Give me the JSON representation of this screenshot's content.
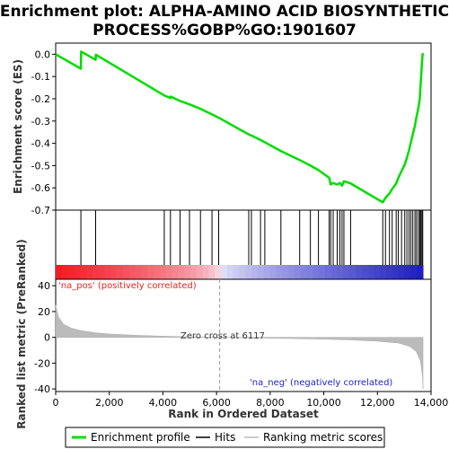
{
  "chart_data": {
    "type": "line",
    "title_lines": [
      "Enrichment plot: ALPHA-AMINO ACID BIOSYNTHETIC",
      "PROCESS%GOBP%GO:1901607"
    ],
    "es_panel": {
      "ylabel": "Enrichment score (ES)",
      "ylim": [
        -0.7,
        0.05
      ],
      "yticks": [
        0.0,
        -0.1,
        -0.2,
        -0.3,
        -0.4,
        -0.5,
        -0.6,
        -0.7
      ],
      "ytick_labels": [
        "0.0",
        "-0.1",
        "-0.2",
        "-0.3",
        "-0.4",
        "-0.5",
        "-0.6",
        "-0.7"
      ],
      "line_color": "#00dd00",
      "profile": [
        [
          0,
          0.0
        ],
        [
          940,
          -0.065
        ],
        [
          950,
          0.012
        ],
        [
          1490,
          -0.025
        ],
        [
          1500,
          -0.002
        ],
        [
          4050,
          -0.185
        ],
        [
          4280,
          -0.197
        ],
        [
          4290,
          -0.19
        ],
        [
          4640,
          -0.21
        ],
        [
          4990,
          -0.225
        ],
        [
          5400,
          -0.245
        ],
        [
          5830,
          -0.27
        ],
        [
          6080,
          -0.285
        ],
        [
          7200,
          -0.36
        ],
        [
          7300,
          -0.365
        ],
        [
          7640,
          -0.385
        ],
        [
          7800,
          -0.395
        ],
        [
          8400,
          -0.435
        ],
        [
          9100,
          -0.475
        ],
        [
          9500,
          -0.5
        ],
        [
          9800,
          -0.52
        ],
        [
          10200,
          -0.555
        ],
        [
          10260,
          -0.585
        ],
        [
          10350,
          -0.578
        ],
        [
          10500,
          -0.585
        ],
        [
          10600,
          -0.578
        ],
        [
          10680,
          -0.59
        ],
        [
          10750,
          -0.57
        ],
        [
          11000,
          -0.58
        ],
        [
          12200,
          -0.665
        ],
        [
          12300,
          -0.645
        ],
        [
          12450,
          -0.625
        ],
        [
          12550,
          -0.605
        ],
        [
          12700,
          -0.58
        ],
        [
          12780,
          -0.555
        ],
        [
          12900,
          -0.525
        ],
        [
          13020,
          -0.495
        ],
        [
          13100,
          -0.465
        ],
        [
          13180,
          -0.43
        ],
        [
          13250,
          -0.395
        ],
        [
          13320,
          -0.36
        ],
        [
          13400,
          -0.32
        ],
        [
          13460,
          -0.28
        ],
        [
          13530,
          -0.24
        ],
        [
          13580,
          -0.2
        ],
        [
          13620,
          -0.12
        ],
        [
          13660,
          -0.04
        ],
        [
          13690,
          0.005
        ]
      ]
    },
    "hits": [
      940,
      1490,
      4050,
      4280,
      4640,
      4990,
      5400,
      5830,
      6080,
      7200,
      7300,
      7640,
      7800,
      8400,
      9100,
      9500,
      9800,
      10200,
      10260,
      10350,
      10500,
      10600,
      10680,
      10750,
      11000,
      12200,
      12300,
      12450,
      12550,
      12700,
      12780,
      12900,
      13020,
      13100,
      13180,
      13250,
      13320,
      13400,
      13460,
      13530,
      13580,
      13620,
      13660,
      13690
    ],
    "ranking_panel": {
      "ylabel": "Ranked list metric (PreRanked)",
      "ylim": [
        -42,
        45
      ],
      "yticks": [
        40,
        20,
        0,
        -20,
        -40
      ],
      "ytick_labels": [
        "40",
        "20",
        "0",
        "-20",
        "-40"
      ],
      "metric_curve": [
        [
          0,
          25
        ],
        [
          100,
          16
        ],
        [
          300,
          10
        ],
        [
          600,
          7
        ],
        [
          1000,
          5
        ],
        [
          1500,
          3.5
        ],
        [
          2000,
          2.6
        ],
        [
          3000,
          1.6
        ],
        [
          4000,
          0.9
        ],
        [
          5000,
          0.4
        ],
        [
          6117,
          0
        ],
        [
          7000,
          -0.3
        ],
        [
          8000,
          -0.7
        ],
        [
          9000,
          -1.0
        ],
        [
          10000,
          -1.4
        ],
        [
          11000,
          -2.0
        ],
        [
          12000,
          -3.0
        ],
        [
          12800,
          -4.5
        ],
        [
          13200,
          -7
        ],
        [
          13450,
          -11
        ],
        [
          13600,
          -18
        ],
        [
          13680,
          -30
        ],
        [
          13700,
          -40
        ]
      ],
      "zero_cross_label": "Zero cross at 6117",
      "zero_cross_x": 6117,
      "pos_label": "'na_pos' (positively correlated)",
      "neg_label": "'na_neg' (negatively correlated)",
      "pos_color": "#ee2222",
      "neg_color": "#2222cc"
    },
    "xlabel": "Rank in Ordered Dataset",
    "xlim": [
      0,
      14000
    ],
    "xticks": [
      0,
      2000,
      4000,
      6000,
      8000,
      10000,
      12000,
      14000
    ],
    "xtick_labels": [
      "0",
      "2,000",
      "4,000",
      "6,000",
      "8,000",
      "10,000",
      "12,000",
      "14,000"
    ],
    "total_rank": 13700,
    "legend": [
      {
        "label": "Enrichment profile",
        "color": "#00dd00"
      },
      {
        "label": "Hits",
        "color": "#000000"
      },
      {
        "label": "Ranking metric scores",
        "color": "#bbbbbb"
      }
    ]
  }
}
